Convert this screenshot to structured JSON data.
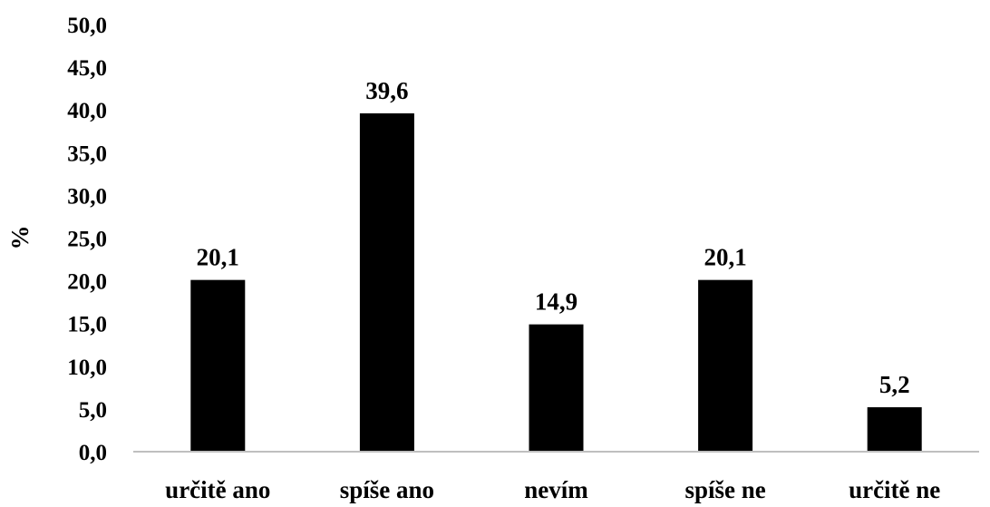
{
  "chart_data": {
    "type": "bar",
    "title": "",
    "xlabel": "",
    "ylabel": "%",
    "ylim": [
      0,
      50
    ],
    "ytick_step": 5,
    "yticks": [
      "0,0",
      "5,0",
      "10,0",
      "15,0",
      "20,0",
      "25,0",
      "30,0",
      "35,0",
      "40,0",
      "45,0",
      "50,0"
    ],
    "categories": [
      "určitě ano",
      "spíše ano",
      "nevím",
      "spíše ne",
      "určitě ne"
    ],
    "values": [
      20.1,
      39.6,
      14.9,
      20.1,
      5.2
    ],
    "value_labels": [
      "20,1",
      "39,6",
      "14,9",
      "20,1",
      "5,2"
    ],
    "grid": false,
    "legend": "none",
    "colors": {
      "bar": "#000000",
      "axis": "#bfbfbf",
      "text": "#000000"
    }
  }
}
